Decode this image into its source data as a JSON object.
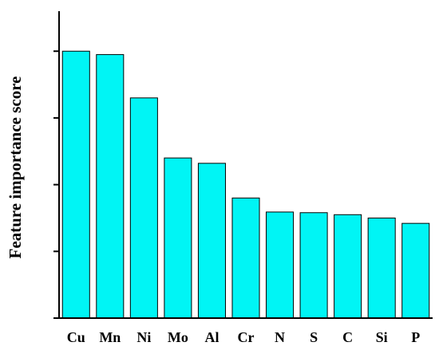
{
  "chart_data": {
    "type": "bar",
    "title": "",
    "xlabel": "",
    "ylabel": "Feature importance score",
    "categories": [
      "Cu",
      "Mn",
      "Ni",
      "Mo",
      "Al",
      "Cr",
      "N",
      "S",
      "C",
      "Si",
      "P"
    ],
    "values": [
      4.0,
      3.95,
      3.3,
      2.4,
      2.32,
      1.8,
      1.59,
      1.58,
      1.55,
      1.5,
      1.42
    ],
    "ylim": [
      0,
      4.6
    ],
    "y_ticks": [
      0,
      1,
      2,
      3,
      4
    ],
    "y_tick_labels_shown": false,
    "grid": false,
    "legend": "none",
    "colors": {
      "bar_fill": "#00f5f5",
      "bar_stroke": "#000000",
      "axis": "#000000"
    }
  }
}
